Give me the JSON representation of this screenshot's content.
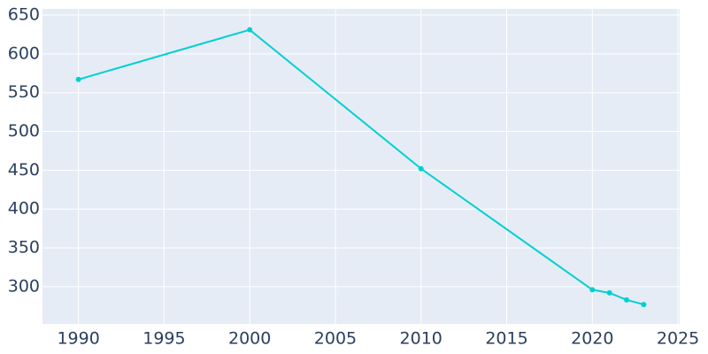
{
  "chart_data": {
    "type": "line",
    "x": [
      1990,
      2000,
      2010,
      2020,
      2021,
      2022,
      2023
    ],
    "series": [
      {
        "color": "#00cfd1",
        "values": [
          567,
          631,
          452,
          296,
          292,
          283,
          277
        ]
      }
    ],
    "xlim": [
      1987.9,
      2025.1
    ],
    "xticks": [
      1990,
      1995,
      2000,
      2005,
      2010,
      2015,
      2020,
      2025
    ],
    "ylim": [
      252,
      658
    ],
    "yticks": [
      300,
      350,
      400,
      450,
      500,
      550,
      600,
      650
    ],
    "grid": true,
    "markers": true
  }
}
